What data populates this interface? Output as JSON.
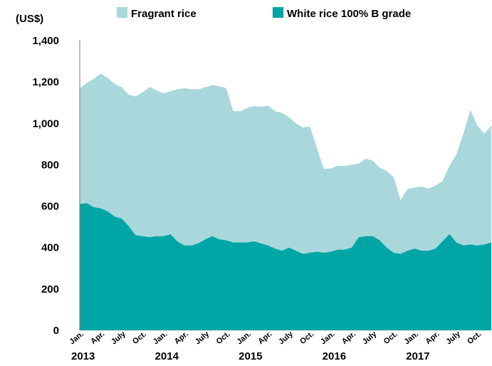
{
  "chart_data": {
    "type": "area",
    "stacked": false,
    "unit_label": "(US$)",
    "y_ticks": [
      "0",
      "200",
      "400",
      "600",
      "800",
      "1,000",
      "1,200",
      "1,400"
    ],
    "ylim": [
      0,
      1400
    ],
    "grid": false,
    "legend_position": "top",
    "month_labels": [
      "Jan.",
      "Apr.",
      "July",
      "Oct."
    ],
    "years": [
      "2013",
      "2014",
      "2015",
      "2016",
      "2017"
    ],
    "x_period": "monthly, Jan 2013 to Dec 2017",
    "series": [
      {
        "name": "Fragrant rice",
        "color": "#a8d8dc",
        "values": [
          1170,
          1195,
          1215,
          1240,
          1220,
          1190,
          1175,
          1140,
          1130,
          1150,
          1175,
          1160,
          1145,
          1155,
          1165,
          1170,
          1165,
          1165,
          1175,
          1185,
          1180,
          1170,
          1060,
          1058,
          1075,
          1083,
          1080,
          1085,
          1060,
          1050,
          1030,
          1000,
          980,
          985,
          880,
          780,
          783,
          795,
          795,
          800,
          805,
          830,
          820,
          785,
          770,
          740,
          630,
          683,
          690,
          695,
          685,
          700,
          720,
          795,
          850,
          950,
          1065,
          990,
          950,
          990
        ]
      },
      {
        "name": "White rice 100% B grade",
        "color": "#00a6a6",
        "values": [
          610,
          615,
          595,
          590,
          575,
          550,
          540,
          505,
          460,
          455,
          450,
          455,
          455,
          465,
          430,
          410,
          410,
          420,
          440,
          455,
          440,
          435,
          425,
          425,
          425,
          430,
          420,
          410,
          395,
          385,
          400,
          385,
          370,
          375,
          380,
          375,
          380,
          390,
          390,
          400,
          450,
          455,
          455,
          435,
          400,
          375,
          370,
          385,
          395,
          385,
          385,
          395,
          430,
          465,
          425,
          410,
          415,
          410,
          415,
          425
        ]
      }
    ]
  }
}
